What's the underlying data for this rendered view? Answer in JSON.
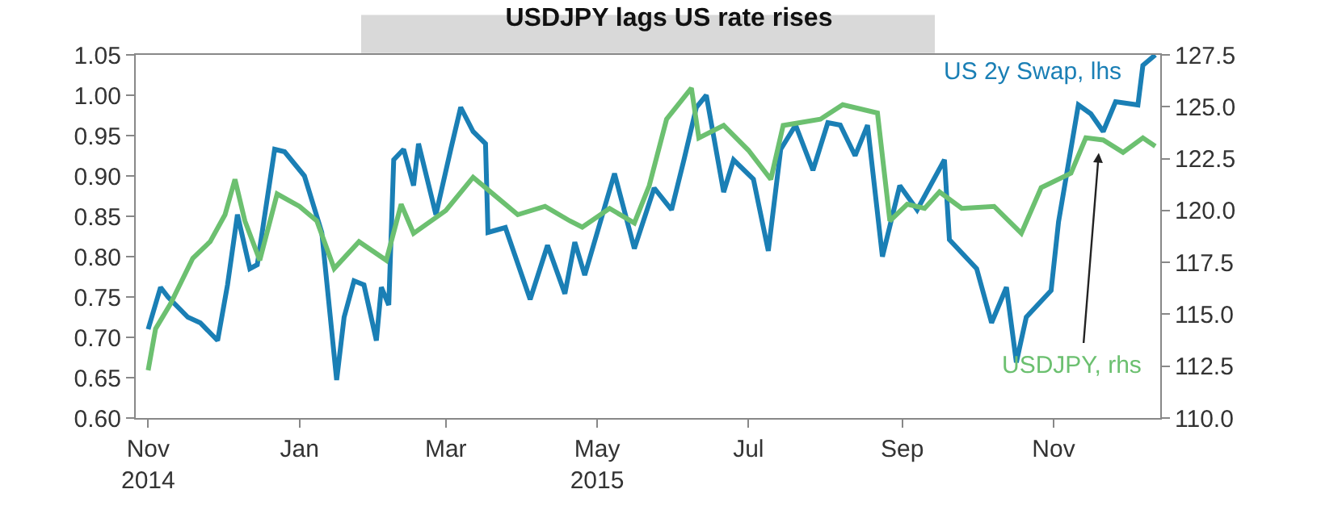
{
  "chart_data": {
    "type": "line",
    "title": "USDJPY lags US rate rises",
    "xlim": [
      "2014-10-27",
      "2015-12-14"
    ],
    "xticks": [
      {
        "value": "2014-11-01",
        "label": "Nov\n2014"
      },
      {
        "value": "2015-01-01",
        "label": "Jan"
      },
      {
        "value": "2015-03-01",
        "label": "Mar"
      },
      {
        "value": "2015-05-01",
        "label": "May\n2015"
      },
      {
        "value": "2015-07-01",
        "label": "Jul"
      },
      {
        "value": "2015-09-01",
        "label": "Sep"
      },
      {
        "value": "2015-11-01",
        "label": "Nov"
      }
    ],
    "ylim": [
      0.6,
      1.05
    ],
    "yticks": [
      {
        "value": 0.6,
        "label": "0.60"
      },
      0.65,
      {
        "value": 0.7,
        "label": "0.70"
      },
      0.75,
      {
        "value": 0.8,
        "label": "0.80"
      },
      0.85,
      {
        "value": 0.9,
        "label": "0.90"
      },
      0.95,
      {
        "value": 1.0,
        "label": "1.00"
      },
      1.05
    ],
    "y2lim": [
      110,
      127.5
    ],
    "y2ticks": [
      {
        "value": 110,
        "label": "110.0"
      },
      112.5,
      {
        "value": 115,
        "label": "115.0"
      },
      117.5,
      {
        "value": 120,
        "label": "120.0"
      },
      122.5,
      {
        "value": 125,
        "label": "125.0"
      },
      127.5
    ],
    "series": [
      {
        "name": "US 2y Swap, lhs",
        "color": "#1a7fb5",
        "x": [
          "2014-11-01",
          "2014-11-06",
          "2014-11-09",
          "2014-11-17",
          "2014-11-22",
          "2014-11-29",
          "2014-12-03",
          "2014-12-07",
          "2014-12-12",
          "2014-12-15",
          "2014-12-22",
          "2014-12-26",
          "2015-01-03",
          "2015-01-10",
          "2015-01-16",
          "2015-01-19",
          "2015-01-23",
          "2015-01-27",
          "2015-02-01",
          "2015-02-03",
          "2015-02-06",
          "2015-02-08",
          "2015-02-12",
          "2015-02-16",
          "2015-02-18",
          "2015-02-25",
          "2015-03-03",
          "2015-03-07",
          "2015-03-12",
          "2015-03-17",
          "2015-03-18",
          "2015-03-25",
          "2015-04-04",
          "2015-04-11",
          "2015-04-18",
          "2015-04-22",
          "2015-04-26",
          "2015-05-08",
          "2015-05-16",
          "2015-05-24",
          "2015-05-31",
          "2015-06-05",
          "2015-06-10",
          "2015-06-14",
          "2015-06-21",
          "2015-06-25",
          "2015-07-03",
          "2015-07-09",
          "2015-07-14",
          "2015-07-20",
          "2015-07-27",
          "2015-08-02",
          "2015-08-07",
          "2015-08-13",
          "2015-08-18",
          "2015-08-24",
          "2015-08-31",
          "2015-09-07",
          "2015-09-18",
          "2015-09-20",
          "2015-10-01",
          "2015-10-07",
          "2015-10-13",
          "2015-10-17",
          "2015-10-21",
          "2015-10-31",
          "2015-11-03",
          "2015-11-11",
          "2015-11-16",
          "2015-11-21",
          "2015-11-26",
          "2015-12-05",
          "2015-12-07",
          "2015-12-12"
        ],
        "values": [
          0.71,
          0.762,
          0.75,
          0.725,
          0.718,
          0.696,
          0.765,
          0.852,
          0.785,
          0.79,
          0.933,
          0.93,
          0.9,
          0.83,
          0.647,
          0.725,
          0.77,
          0.765,
          0.696,
          0.762,
          0.74,
          0.92,
          0.933,
          0.888,
          0.94,
          0.852,
          0.933,
          0.985,
          0.955,
          0.94,
          0.83,
          0.836,
          0.747,
          0.814,
          0.754,
          0.818,
          0.777,
          0.903,
          0.81,
          0.885,
          0.858,
          0.92,
          0.985,
          1.0,
          0.88,
          0.92,
          0.896,
          0.807,
          0.933,
          0.963,
          0.907,
          0.966,
          0.963,
          0.925,
          0.963,
          0.8,
          0.888,
          0.858,
          0.92,
          0.821,
          0.785,
          0.718,
          0.762,
          0.669,
          0.725,
          0.758,
          0.843,
          0.988,
          0.977,
          0.955,
          0.992,
          0.988,
          1.037,
          1.05
        ]
      },
      {
        "name": "USDJPY, rhs",
        "color": "#6cc070",
        "axis": "y2",
        "x": [
          "2014-11-01",
          "2014-11-04",
          "2014-11-10",
          "2014-11-19",
          "2014-11-26",
          "2014-12-02",
          "2014-12-06",
          "2014-12-10",
          "2014-12-16",
          "2014-12-23",
          "2015-01-01",
          "2015-01-08",
          "2015-01-15",
          "2015-01-25",
          "2015-02-05",
          "2015-02-11",
          "2015-02-16",
          "2015-03-01",
          "2015-03-12",
          "2015-03-21",
          "2015-03-30",
          "2015-04-10",
          "2015-04-20",
          "2015-04-25",
          "2015-05-06",
          "2015-05-16",
          "2015-05-22",
          "2015-05-29",
          "2015-06-08",
          "2015-06-11",
          "2015-06-21",
          "2015-07-01",
          "2015-07-10",
          "2015-07-15",
          "2015-07-30",
          "2015-08-08",
          "2015-08-22",
          "2015-08-27",
          "2015-09-03",
          "2015-09-10",
          "2015-09-16",
          "2015-09-25",
          "2015-10-08",
          "2015-10-19",
          "2015-10-27",
          "2015-11-08",
          "2015-11-14",
          "2015-11-21",
          "2015-11-29",
          "2015-12-07",
          "2015-12-12"
        ],
        "values": [
          112.3,
          114.3,
          115.5,
          117.7,
          118.5,
          119.8,
          121.5,
          119.5,
          117.6,
          120.8,
          120.2,
          119.5,
          117.2,
          118.5,
          117.6,
          120.3,
          118.9,
          120.0,
          121.6,
          120.7,
          119.8,
          120.2,
          119.5,
          119.2,
          120.1,
          119.4,
          121.2,
          124.4,
          125.9,
          123.5,
          124.1,
          122.9,
          121.5,
          124.1,
          124.4,
          125.1,
          124.7,
          119.5,
          120.3,
          120.1,
          120.9,
          120.1,
          120.2,
          118.9,
          121.1,
          121.8,
          123.5,
          123.4,
          122.8,
          123.5,
          123.1
        ]
      }
    ]
  }
}
